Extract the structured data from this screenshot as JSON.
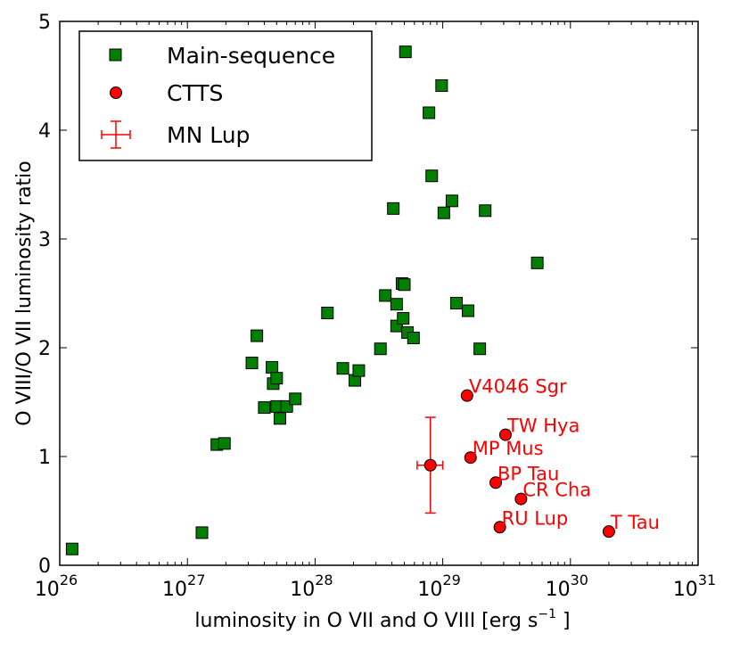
{
  "chart_data": {
    "type": "scatter",
    "xlabel_main": "luminosity in O VII and O VIII [erg s",
    "xlabel_sup": "−1",
    "xlabel_end": " ]",
    "ylabel": "O VIII/O VII luminosity ratio",
    "xscale": "log",
    "xlim": [
      1e+26,
      1e+31
    ],
    "ylim": [
      0,
      5
    ],
    "x_ticks": [
      {
        "value": 1e+26,
        "base": "10",
        "exp": "26"
      },
      {
        "value": 1e+27,
        "base": "10",
        "exp": "27"
      },
      {
        "value": 1e+28,
        "base": "10",
        "exp": "28"
      },
      {
        "value": 1e+29,
        "base": "10",
        "exp": "29"
      },
      {
        "value": 1e+30,
        "base": "10",
        "exp": "30"
      },
      {
        "value": 1e+31,
        "base": "10",
        "exp": "31"
      }
    ],
    "y_ticks": [
      {
        "value": 0,
        "label": "0"
      },
      {
        "value": 1,
        "label": "1"
      },
      {
        "value": 2,
        "label": "2"
      },
      {
        "value": 3,
        "label": "3"
      },
      {
        "value": 4,
        "label": "4"
      },
      {
        "value": 5,
        "label": "5"
      }
    ],
    "legend": {
      "position": "top-left",
      "entries": [
        {
          "label": "Main-sequence",
          "marker": "square",
          "color": "#007f00"
        },
        {
          "label": "CTTS",
          "marker": "circle",
          "color": "#ff0000"
        },
        {
          "label": "MN Lup",
          "marker": "errorbar",
          "color": "#ff0000"
        }
      ]
    },
    "colors": {
      "main_sequence": "#007f00",
      "ctts": "#ff0000",
      "mn_lup": "#ff0000",
      "annotation": "#ff0000"
    },
    "series": [
      {
        "name": "Main-sequence",
        "points": [
          {
            "x": 1.25e+26,
            "y": 0.15
          },
          {
            "x": 1.3e+27,
            "y": 0.3
          },
          {
            "x": 1.7e+27,
            "y": 1.11
          },
          {
            "x": 1.95e+27,
            "y": 1.12
          },
          {
            "x": 3.2e+27,
            "y": 1.86
          },
          {
            "x": 3.5e+27,
            "y": 2.11
          },
          {
            "x": 4e+27,
            "y": 1.45
          },
          {
            "x": 4.6e+27,
            "y": 1.82
          },
          {
            "x": 4.7e+27,
            "y": 1.67
          },
          {
            "x": 5e+27,
            "y": 1.72
          },
          {
            "x": 5e+27,
            "y": 1.46
          },
          {
            "x": 5.3e+27,
            "y": 1.35
          },
          {
            "x": 6e+27,
            "y": 1.46
          },
          {
            "x": 7e+27,
            "y": 1.53
          },
          {
            "x": 1.25e+28,
            "y": 2.32
          },
          {
            "x": 1.65e+28,
            "y": 1.81
          },
          {
            "x": 2.05e+28,
            "y": 1.7
          },
          {
            "x": 2.2e+28,
            "y": 1.79
          },
          {
            "x": 3.25e+28,
            "y": 1.99
          },
          {
            "x": 3.55e+28,
            "y": 2.48
          },
          {
            "x": 4.1e+28,
            "y": 3.28
          },
          {
            "x": 4.35e+28,
            "y": 2.4
          },
          {
            "x": 4.35e+28,
            "y": 2.2
          },
          {
            "x": 4.8e+28,
            "y": 2.59
          },
          {
            "x": 4.9e+28,
            "y": 2.27
          },
          {
            "x": 5e+28,
            "y": 2.58
          },
          {
            "x": 5.1e+28,
            "y": 4.72
          },
          {
            "x": 5.3e+28,
            "y": 2.14
          },
          {
            "x": 5.9e+28,
            "y": 2.09
          },
          {
            "x": 7.8e+28,
            "y": 4.16
          },
          {
            "x": 8.2e+28,
            "y": 3.58
          },
          {
            "x": 9.8e+28,
            "y": 4.41
          },
          {
            "x": 1.02e+29,
            "y": 3.24
          },
          {
            "x": 1.18e+29,
            "y": 3.35
          },
          {
            "x": 1.28e+29,
            "y": 2.41
          },
          {
            "x": 1.58e+29,
            "y": 2.34
          },
          {
            "x": 1.95e+29,
            "y": 1.99
          },
          {
            "x": 2.15e+29,
            "y": 3.26
          },
          {
            "x": 5.5e+29,
            "y": 2.78
          }
        ]
      },
      {
        "name": "CTTS",
        "points": [
          {
            "x": 1.55e+29,
            "y": 1.56,
            "label": "V4046 Sgr"
          },
          {
            "x": 3.1e+29,
            "y": 1.2,
            "label": "TW Hya"
          },
          {
            "x": 1.65e+29,
            "y": 0.99,
            "label": "MP Mus"
          },
          {
            "x": 2.6e+29,
            "y": 0.76,
            "label": "BP Tau"
          },
          {
            "x": 4.1e+29,
            "y": 0.61,
            "label": "CR Cha"
          },
          {
            "x": 2.8e+29,
            "y": 0.35,
            "label": "RU Lup"
          },
          {
            "x": 2e+30,
            "y": 0.31,
            "label": "T Tau"
          }
        ]
      },
      {
        "name": "MN Lup",
        "points": [
          {
            "x": 8e+28,
            "y": 0.92,
            "x_low": 6.3e+28,
            "x_high": 1e+29,
            "y_low": 0.48,
            "y_high": 1.36
          }
        ]
      }
    ]
  }
}
